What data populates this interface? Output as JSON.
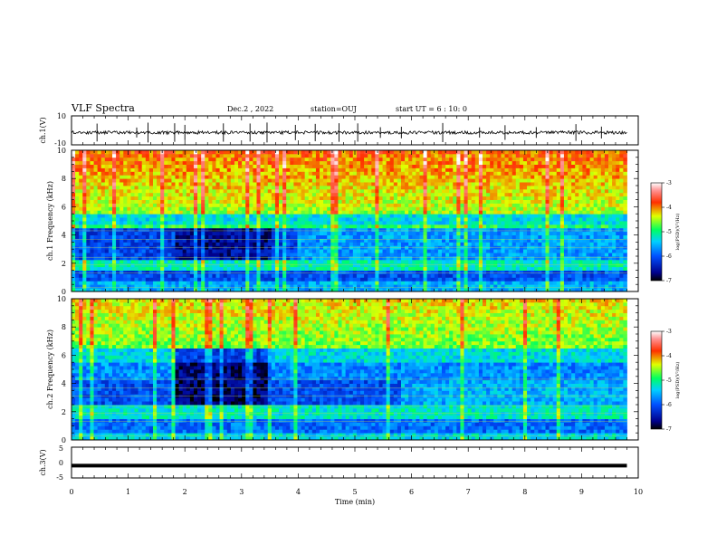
{
  "header": {
    "title": "VLF Spectra",
    "date": "Dec.2 , 2022",
    "station": "station=OUJ",
    "start": "start UT = 6 : 10: 0"
  },
  "chart_data": [
    {
      "type": "line",
      "name": "ch1-waveform",
      "ylabel": "ch.1(V)",
      "ylim": [
        -10,
        10
      ],
      "yticks": [
        "10",
        "-10"
      ],
      "baseline": -1.5,
      "spike_times_min": [
        0.45,
        1.15,
        1.35,
        1.82,
        2.0,
        2.68,
        3.15,
        3.45,
        3.95,
        4.3,
        4.72,
        5.05,
        5.45,
        5.82,
        6.55,
        7.2,
        7.65,
        8.2,
        8.9,
        9.35
      ]
    },
    {
      "type": "heatmap",
      "name": "ch1-spectrogram",
      "ylabel": "ch.1 Frequency (kHz)",
      "xlim": [
        0,
        10
      ],
      "ylim": [
        0,
        10
      ],
      "yticks": [
        "0",
        "2",
        "4",
        "6",
        "8",
        "10"
      ],
      "data_end_min": 9.8,
      "colorbar": {
        "label": "log(PSD)(V²/Hz)",
        "ticks": [
          "-3",
          "-4",
          "-5",
          "-6",
          "-7"
        ],
        "range": [
          -7,
          -3
        ]
      }
    },
    {
      "type": "heatmap",
      "name": "ch2-spectrogram",
      "ylabel": "ch.2 Frequency (kHz)",
      "xlim": [
        0,
        10
      ],
      "ylim": [
        0,
        10
      ],
      "yticks": [
        "0",
        "2",
        "4",
        "6",
        "8",
        "10"
      ],
      "data_end_min": 9.8,
      "colorbar": {
        "label": "log(PSD)(V²/Hz)",
        "ticks": [
          "-3",
          "-4",
          "-5",
          "-6",
          "-7"
        ],
        "range": [
          -7,
          -3
        ]
      }
    },
    {
      "type": "line",
      "name": "ch3-waveform",
      "ylabel": "ch.3(V)",
      "ylim": [
        -5,
        5
      ],
      "yticks": [
        "5",
        "0",
        "-5"
      ],
      "value": -1
    }
  ],
  "xaxis": {
    "label": "Time (min)",
    "ticks": [
      "0",
      "1",
      "2",
      "3",
      "4",
      "5",
      "6",
      "7",
      "8",
      "9",
      "10"
    ]
  }
}
